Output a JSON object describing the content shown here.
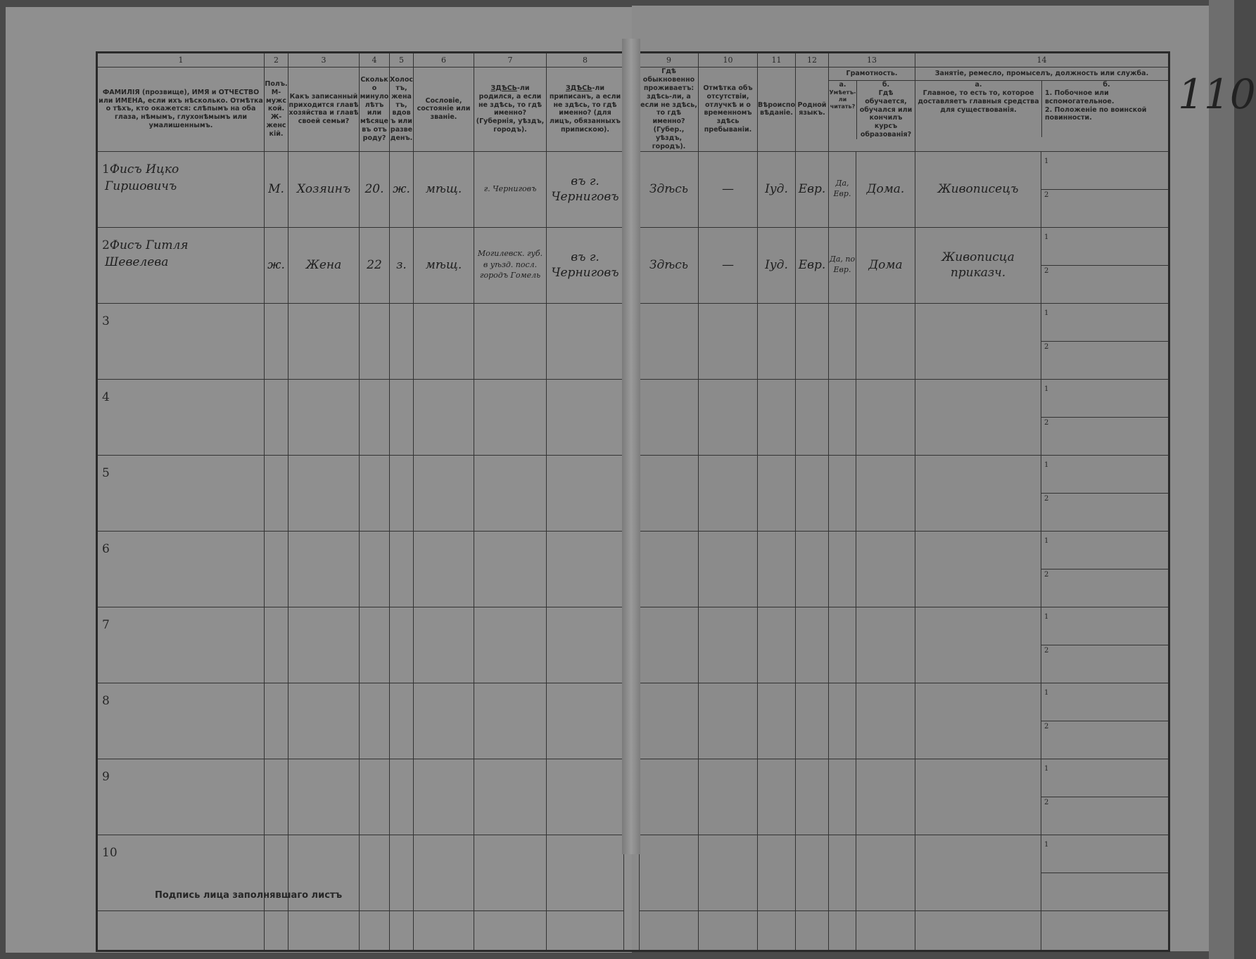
{
  "header": {
    "col_numbers": [
      "1",
      "2",
      "3",
      "4",
      "5",
      "6",
      "7",
      "8",
      "9",
      "10",
      "11",
      "12",
      "13",
      "14"
    ],
    "col1": "ФАМИЛІЯ (прозвище), ИМЯ и ОТЧЕСТВО или ИМЕНА, если ихъ нѣсколько. Отмѣтка о тѣхъ, кто окажется: слѣпымъ на оба глаза, нѣмымъ, глухонѣмымъ или умалишеннымъ.",
    "col2": "Полъ. М-мужской. Ж-женскій.",
    "col3": "Какъ записанный приходится главѣ хозяйства и главѣ своей семьи?",
    "col4": "Сколько минуло лѣтъ или мѣсяцевъ отъ роду?",
    "col5": "Холостъ, женатъ, вдовъ или разведенъ.",
    "col6": "Сословіе, состояніе или званіе.",
    "col7_em": "ЗДѢСЬ",
    "col7": "-ли родился, а если не здѣсь, то гдѣ именно? (Губернія, уѣздъ, городъ).",
    "col8_em": "ЗДѢСЬ",
    "col8": "-ли приписанъ, а если не здѣсь, то гдѣ именно? (для лицъ, обязанныхъ припискою).",
    "col9": "Гдѣ обыкновенно проживаетъ: здѣсь-ли, а если не здѣсь, то гдѣ именно? (Губер., уѣздъ, городъ).",
    "col10": "Отмѣтка объ отсутствіи, отлучкѣ и о временномъ здѣсь пребываніи.",
    "col11": "Вѣроисповѣданіе.",
    "col12": "Родной языкъ.",
    "col13_group": "Грамотность.",
    "col13a_letter": "а.",
    "col13a": "Умѣетъ-ли читать?",
    "col13b_letter": "б.",
    "col13b": "Гдѣ обучается, обучался или кончилъ курсъ образованія?",
    "col14_group": "Занятіе, ремесло, промыселъ, должность или служба.",
    "col14a_letter": "а.",
    "col14a": "Главное, то есть то, которое доставляетъ главныя средства для существованія.",
    "col14b_letter": "б.",
    "col14b_1": "1. Побочное или вспомогательное.",
    "col14b_2": "2. Положеніе по воинской повинности."
  },
  "rows": [
    {
      "num": "1",
      "name_line1": "Фисъ Ицко",
      "name_line2": "Гиршовичъ",
      "sex": "М.",
      "relation": "Хозяинъ",
      "age": "20.",
      "marital": "ж.",
      "estate": "мѣщ.",
      "birthplace": "г. Черниговъ",
      "registered": "въ г. Черниговъ",
      "residence": "Здѣсь",
      "absence": "—",
      "religion": "Іуд.",
      "language": "Евр.",
      "literacy_read": "Да, Евр.",
      "literacy_where": "Дома.",
      "occupation_main": "Живописецъ",
      "sub1": "1",
      "sub2": "2"
    },
    {
      "num": "2",
      "name_line1": "Фисъ Гитля",
      "name_line2": "Шевелева",
      "sex": "ж.",
      "relation": "Жена",
      "age": "22",
      "marital": "з.",
      "estate": "мѣщ.",
      "birthplace": "Могилевск. губ. в уѣзд. посл. городъ Гомель",
      "registered": "въ г. Черниговъ",
      "residence": "Здѣсь",
      "absence": "—",
      "religion": "Іуд.",
      "language": "Евр.",
      "literacy_read": "Да, по Евр.",
      "literacy_where": "Дома",
      "occupation_main": "Живописца приказч.",
      "sub1": "1",
      "sub2": "2"
    },
    {
      "num": "3",
      "sub1": "1",
      "sub2": "2"
    },
    {
      "num": "4",
      "sub1": "1",
      "sub2": "2"
    },
    {
      "num": "5",
      "sub1": "1",
      "sub2": "2"
    },
    {
      "num": "6",
      "sub1": "1",
      "sub2": "2"
    },
    {
      "num": "7",
      "sub1": "1",
      "sub2": "2"
    },
    {
      "num": "8",
      "sub1": "1",
      "sub2": "2"
    },
    {
      "num": "9",
      "sub1": "1",
      "sub2": "2"
    },
    {
      "num": "10",
      "sub1": "1",
      "sub2": ""
    }
  ],
  "footer": {
    "signature_label": "Подпись лица заполнявшаго листъ"
  },
  "margin_page_number": "110"
}
